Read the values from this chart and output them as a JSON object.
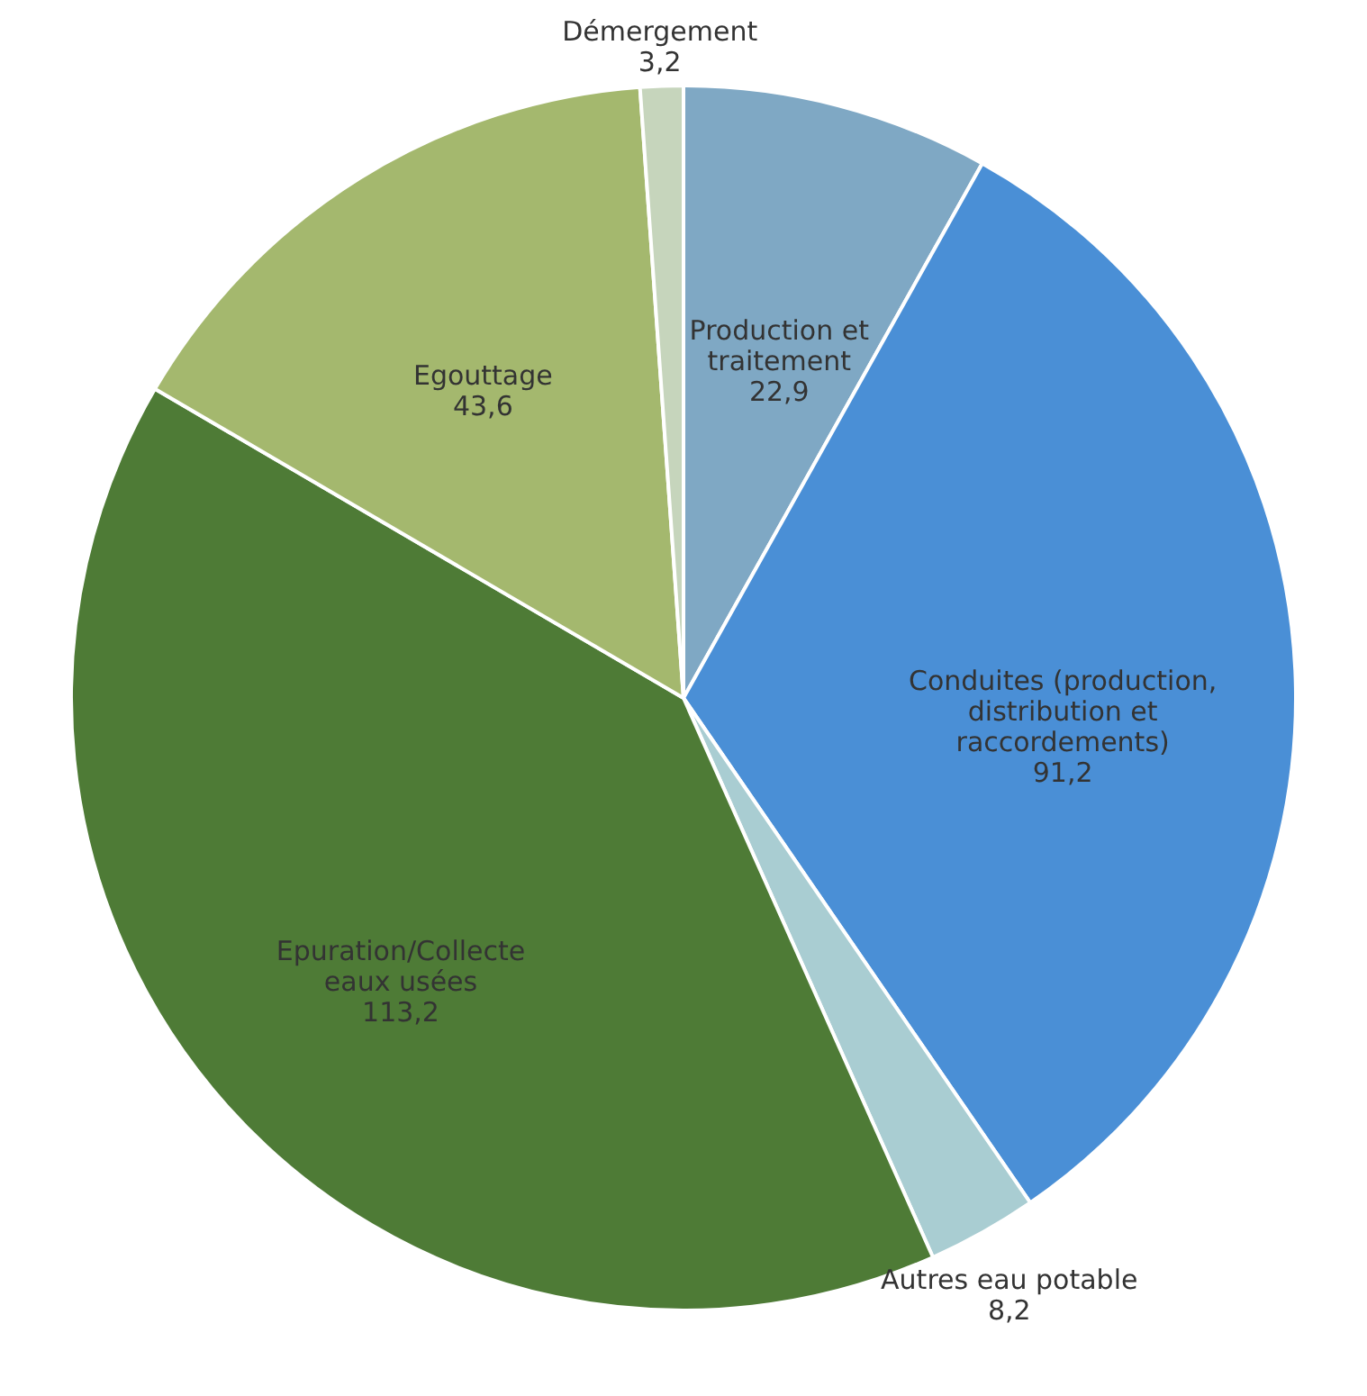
{
  "chart_data": {
    "type": "pie",
    "categories": [
      "Production et traitement",
      "Conduites (production, distribution et raccordements)",
      "Autres eau potable",
      "Epuration/Collecte eaux usées",
      "Egouttage",
      "Démergement"
    ],
    "values": [
      22.9,
      91.2,
      8.2,
      113.2,
      43.6,
      3.2
    ],
    "value_labels": [
      "22,9",
      "91,2",
      "8,2",
      "113,2",
      "43,6",
      "3,2"
    ],
    "colors": [
      "#7fa8c4",
      "#4a8fd6",
      "#a9cdd2",
      "#4e7b36",
      "#a4b86e",
      "#c6d5bc"
    ]
  }
}
